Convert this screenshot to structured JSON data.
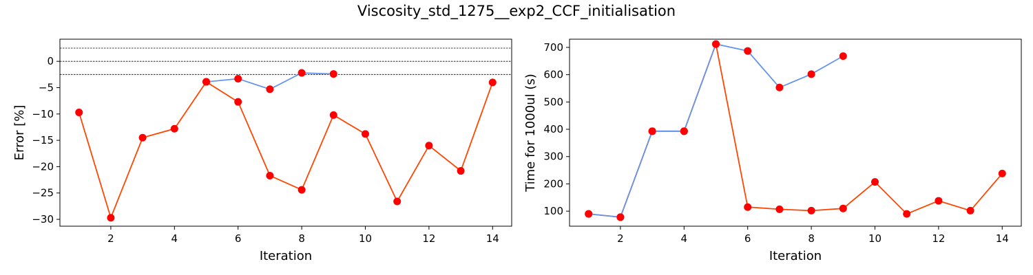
{
  "figure_title": "Viscosity_std_1275__exp2_CCF_initialisation",
  "colors": {
    "orange_line": "#ff4500",
    "blue_line": "#6495ed",
    "marker": "#ff0000",
    "refline": "#000000"
  },
  "chart_data": [
    {
      "type": "line",
      "xlabel": "Iteration",
      "ylabel": "Error [%]",
      "xlim": [
        0.4,
        14.6
      ],
      "ylim": [
        -31.3,
        4.2
      ],
      "xticks": [
        2,
        4,
        6,
        8,
        10,
        12,
        14
      ],
      "yticks": [
        -30,
        -25,
        -20,
        -15,
        -10,
        -5,
        0
      ],
      "reference_lines": [
        2.5,
        0,
        -2.5
      ],
      "grid": false,
      "series": [
        {
          "color": "orange",
          "x": [
            1,
            2,
            3,
            4,
            5,
            6,
            7,
            8,
            9,
            10,
            11,
            12,
            13,
            14
          ],
          "y": [
            -9.7,
            -29.7,
            -14.5,
            -12.8,
            -3.9,
            -7.7,
            -21.7,
            -24.4,
            -10.2,
            -13.8,
            -26.6,
            -16.0,
            -20.8,
            -4.0
          ]
        },
        {
          "color": "blue",
          "x": [
            5,
            6,
            7,
            8,
            9
          ],
          "y": [
            -3.9,
            -3.3,
            -5.3,
            -2.2,
            -2.4
          ]
        }
      ]
    },
    {
      "type": "line",
      "xlabel": "Iteration",
      "ylabel": "Time for 1000ul (s)",
      "xlim": [
        0.4,
        14.6
      ],
      "ylim": [
        45,
        730
      ],
      "xticks": [
        2,
        4,
        6,
        8,
        10,
        12,
        14
      ],
      "yticks": [
        100,
        200,
        300,
        400,
        500,
        600,
        700
      ],
      "grid": false,
      "series": [
        {
          "color": "orange",
          "x": [
            1,
            2,
            3,
            4,
            5,
            6,
            7,
            8,
            9,
            10,
            11,
            12,
            13,
            14
          ],
          "y": [
            90,
            78,
            393,
            393,
            712,
            115,
            107,
            102,
            110,
            207,
            90,
            138,
            102,
            238
          ]
        },
        {
          "color": "blue",
          "x": [
            1,
            2,
            3,
            4,
            5,
            6,
            7,
            8,
            9
          ],
          "y": [
            90,
            78,
            393,
            393,
            712,
            687,
            553,
            602,
            668
          ]
        }
      ]
    }
  ]
}
